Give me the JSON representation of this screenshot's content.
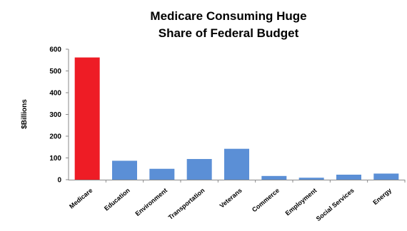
{
  "chart_data": {
    "type": "bar",
    "title_lines": [
      "Medicare Consuming Huge",
      "Share of Federal Budget"
    ],
    "xlabel": "",
    "ylabel": "$Billions",
    "ylim": [
      0,
      600
    ],
    "yticks": [
      0,
      100,
      200,
      300,
      400,
      500,
      600
    ],
    "grid": false,
    "categories": [
      "Medicare",
      "Education",
      "Environment",
      "Transportation",
      "Veterans",
      "Commerce",
      "Employment",
      "Social Services",
      "Energy"
    ],
    "values": [
      562,
      87,
      50,
      95,
      142,
      17,
      9,
      23,
      28
    ],
    "colors": [
      "#ee1c25",
      "#5b8fd6",
      "#5b8fd6",
      "#5b8fd6",
      "#5b8fd6",
      "#5b8fd6",
      "#5b8fd6",
      "#5b8fd6",
      "#5b8fd6"
    ]
  }
}
